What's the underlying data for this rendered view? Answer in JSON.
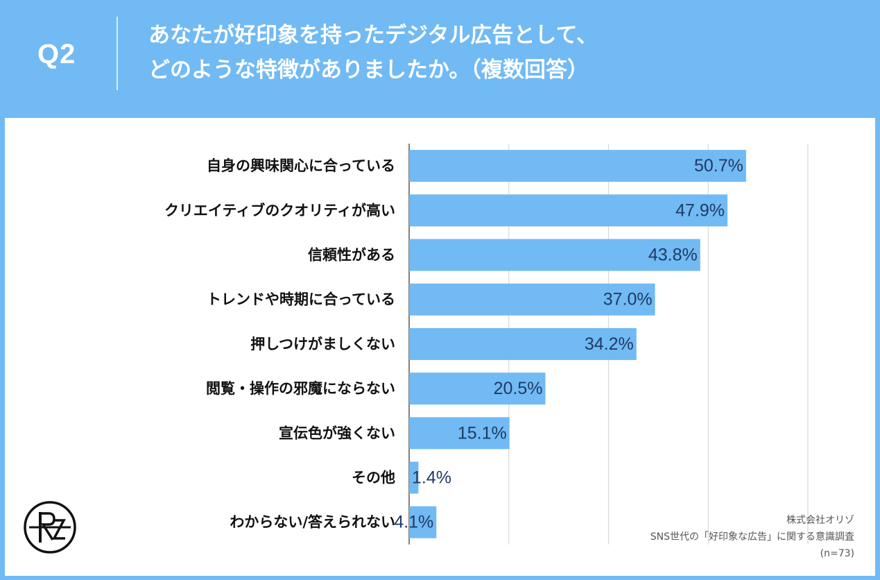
{
  "header": {
    "question_label": "Q2",
    "title_line1": "あなたが好印象を持ったデジタル広告として、",
    "title_line2": "どのような特徴がありましたか。（複数回答）"
  },
  "chart_data": {
    "type": "bar",
    "orientation": "horizontal",
    "categories": [
      "自身の興味関心に合っている",
      "クリエイティブのクオリティが高い",
      "信頼性がある",
      "トレンドや時期に合っている",
      "押しつけがましくない",
      "閲覧・操作の邪魔にならない",
      "宣伝色が強くない",
      "その他",
      "わからない/答えられない"
    ],
    "values": [
      50.7,
      47.9,
      43.8,
      37.0,
      34.2,
      20.5,
      15.1,
      1.4,
      4.1
    ],
    "value_labels": [
      "50.7%",
      "47.9%",
      "43.8%",
      "37.0%",
      "34.2%",
      "20.5%",
      "15.1%",
      "1.4%",
      "4.1%"
    ],
    "xlim": [
      0,
      60
    ],
    "gridlines": [
      0,
      15,
      30,
      45,
      60
    ],
    "grid": true,
    "bar_color": "#71baf4",
    "gridline_color": "#d7d7d7"
  },
  "footer": {
    "company": "株式会社オリゾ",
    "survey": "SNS世代の「好印象な広告」に関する意識調査",
    "sample": "(n=73)"
  },
  "logo": {
    "icon": "orizo-logo-icon",
    "text": "RZ"
  },
  "colors": {
    "header_bg": "#71baf4",
    "panel_bg": "#ffffff",
    "value_text": "#1f3a63",
    "label_text": "#111111"
  }
}
